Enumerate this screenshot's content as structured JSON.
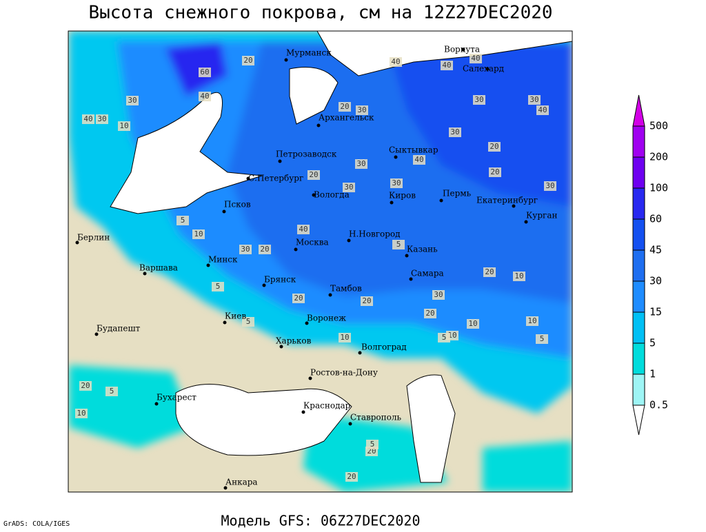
{
  "title": "Высота снежного покрова, см на 12Z27DEC2020",
  "footer": "Модель GFS: 06Z27DEC2020",
  "credit": "GrADS: COLA/IGES",
  "legend": {
    "levels": [
      500,
      200,
      100,
      60,
      45,
      30,
      15,
      5,
      1,
      0.5
    ],
    "colors": [
      "#d200e6",
      "#a000f0",
      "#6e00f0",
      "#2828f0",
      "#1450f0",
      "#1e6ef0",
      "#1e8cff",
      "#00c0f5",
      "#00dcdc",
      "#9ef5f5",
      "#ffffff"
    ]
  },
  "cities": [
    "Мурманск",
    "Воркута",
    "Салехард",
    "Архангельск",
    "Петрозаводск",
    "Сыктывкар",
    "С.Петербург",
    "Вологда",
    "Киров",
    "Пермь",
    "Екатеринбург",
    "Курган",
    "Псков",
    "Берлин",
    "Москва",
    "Н.Новгород",
    "Казань",
    "Варшава",
    "Минск",
    "Самара",
    "Брянск",
    "Тамбов",
    "Киев",
    "Воронеж",
    "Будапешт",
    "Харьков",
    "Волгоград",
    "Ростов-на-Дону",
    "Бухарест",
    "Краснодар",
    "Ставрополь",
    "Анкара"
  ],
  "contour_labels": [
    20,
    60,
    40,
    30,
    40,
    30,
    10,
    20,
    30,
    40,
    40,
    30,
    40,
    30,
    40,
    20,
    30,
    30,
    30,
    40,
    20,
    30,
    5,
    10,
    30,
    20,
    20,
    30,
    40,
    10,
    20,
    5,
    20,
    20,
    30,
    20,
    10,
    10,
    5,
    10,
    5,
    10,
    5,
    5,
    20,
    10,
    5,
    20,
    20,
    5
  ]
}
